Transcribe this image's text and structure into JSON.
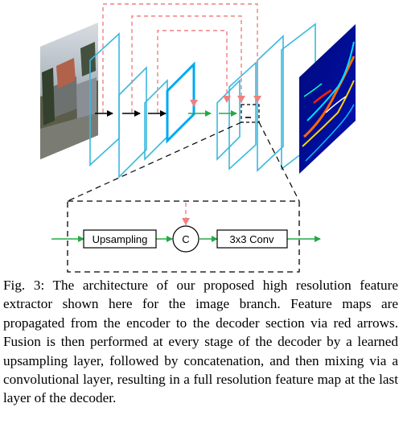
{
  "diagram": {
    "blocks": {
      "upsampling": "Upsampling",
      "concat": "C",
      "conv": "3x3 Conv"
    },
    "colors": {
      "feature_map": "#3bb8e0",
      "feature_map_dark": "#00a8f0",
      "skip_arrow": "#f08080",
      "flow_arrow_green": "#22aa44",
      "flow_arrow_black": "#000000",
      "dashed_box": "#000000"
    },
    "icons": {
      "input_image": "street-scene-photo",
      "output_image": "feature-heatmap"
    }
  },
  "caption": {
    "text": "Fig. 3: The architecture of our proposed high resolution feature extractor shown here for the image branch. Feature maps are propagated from the encoder to the decoder section via red arrows. Fusion is then performed at every stage of the decoder by a learned upsampling layer, followed by concatenation, and then mixing via a convolutional layer, resulting in a full resolution feature map at the last layer of the decoder."
  }
}
